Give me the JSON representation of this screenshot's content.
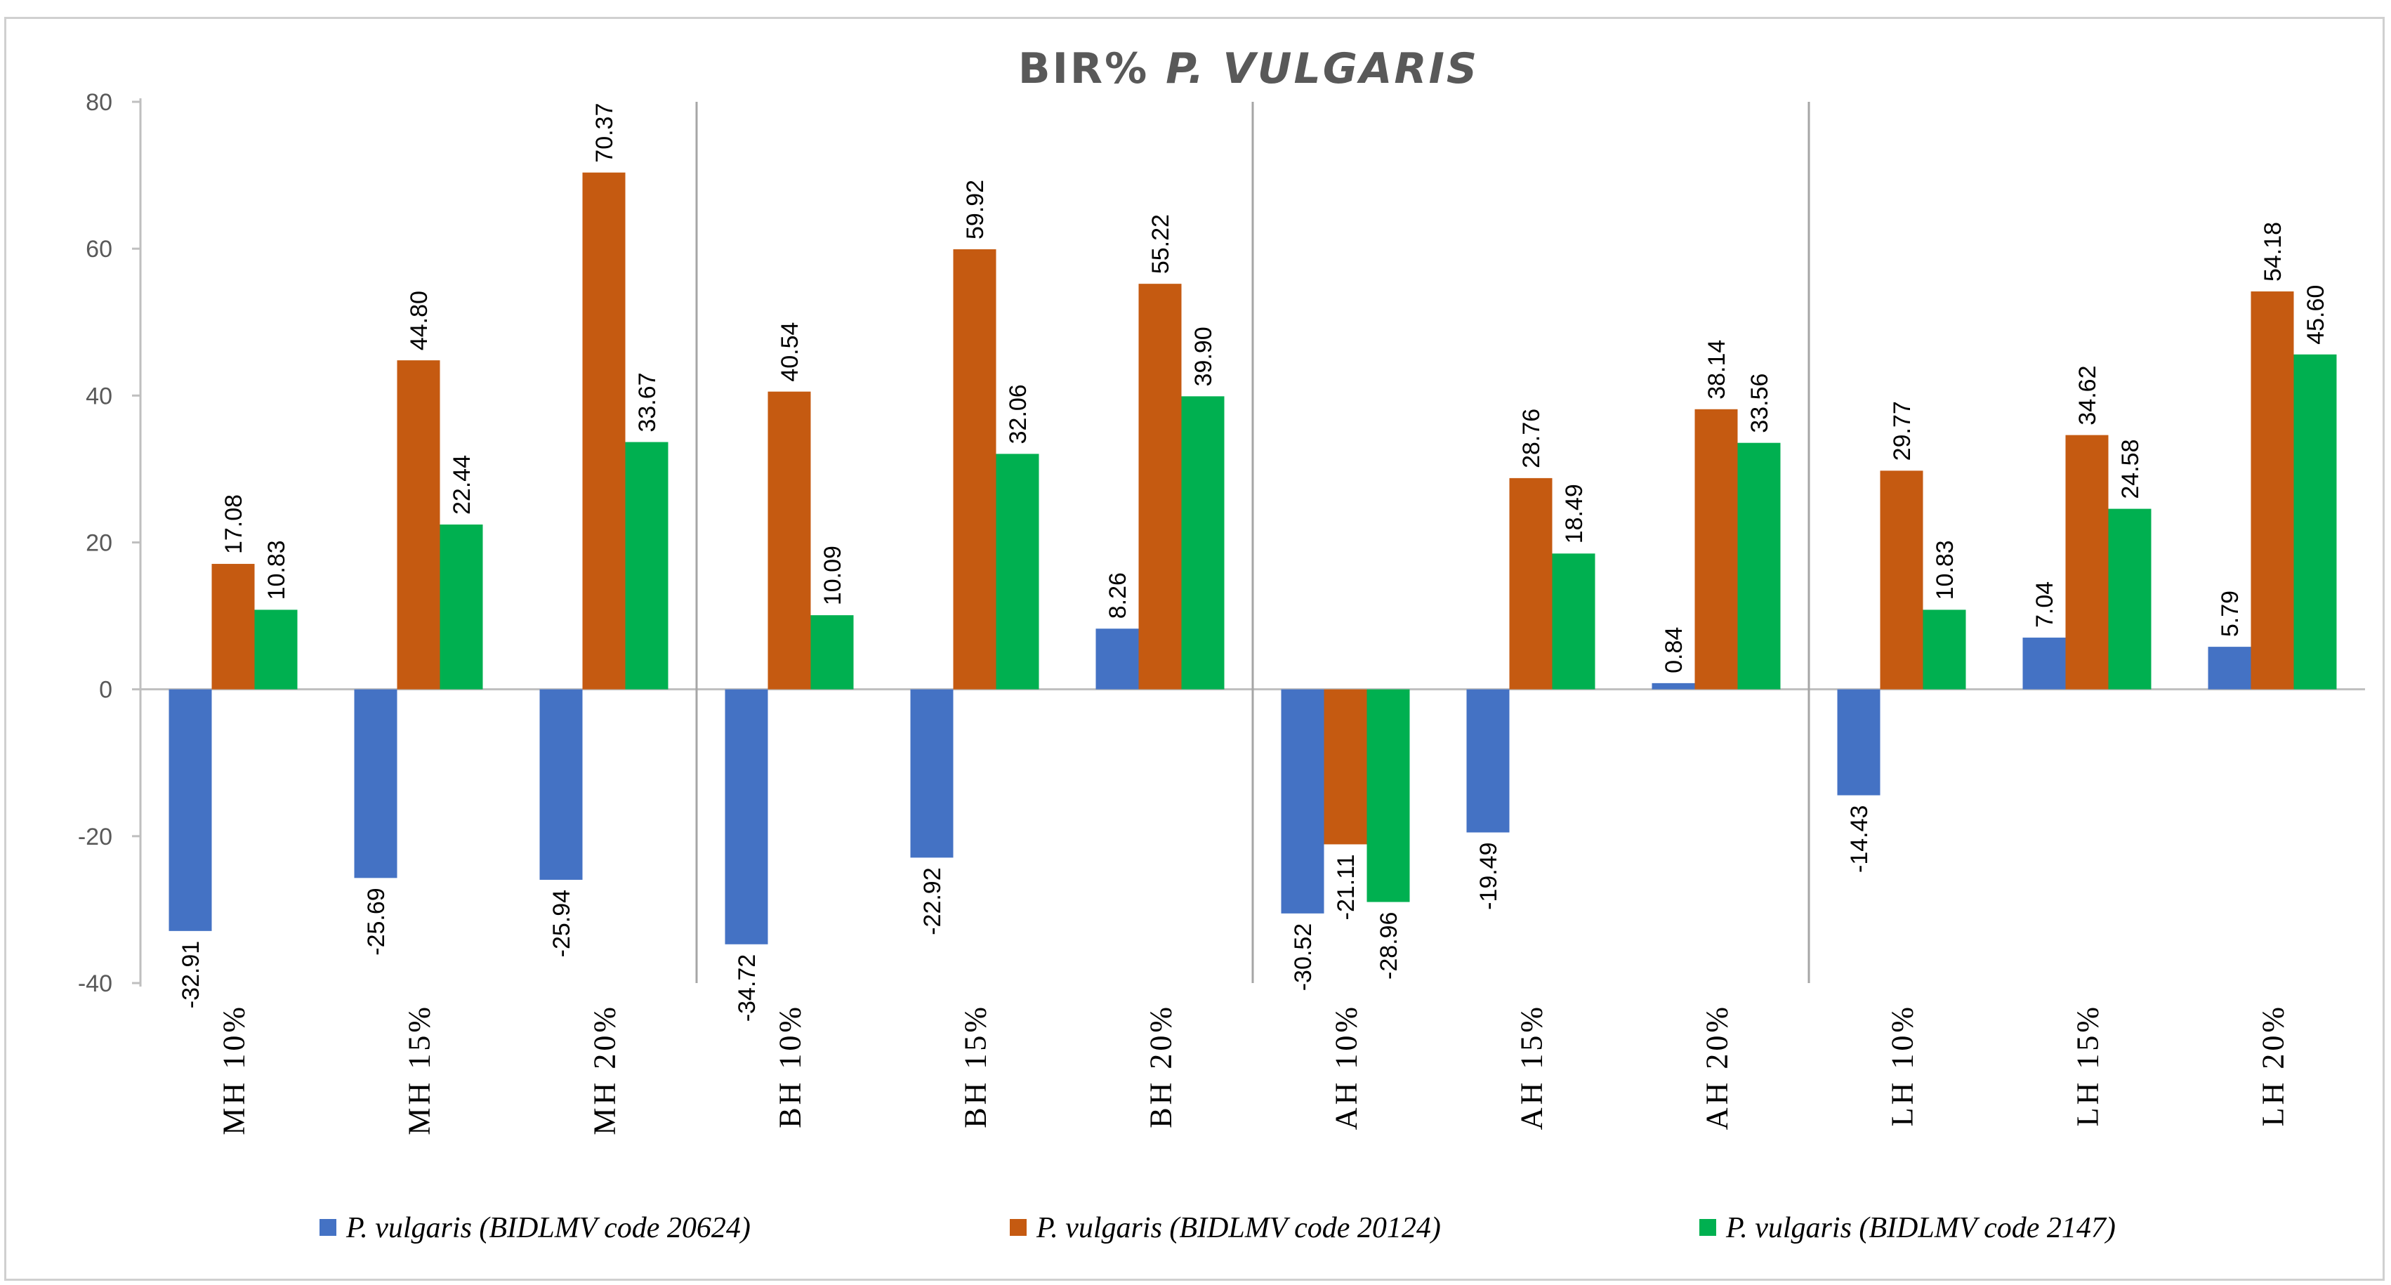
{
  "chart_data": {
    "type": "bar",
    "title_prefix": "BIR%",
    "title_italic": "P. VULGARIS",
    "categories": [
      "MH 10%",
      "MH 15%",
      "MH 20%",
      "BH 10%",
      "BH 15%",
      "BH 20%",
      "AH 10%",
      "AH 15%",
      "AH 20%",
      "LH 10%",
      "LH 15%",
      "LH 20%"
    ],
    "series": [
      {
        "name": "P. vulgaris (BIDLMV code 20624)",
        "color": "#4472c4",
        "values": [
          -32.91,
          -25.69,
          -25.94,
          -34.72,
          -22.92,
          8.26,
          -30.52,
          -19.49,
          0.84,
          -14.43,
          7.04,
          5.79
        ],
        "labels": [
          "-32.91",
          "-25.69",
          "-25.94",
          "-34.72",
          "-22.92",
          "8.26",
          "-30.52",
          "-19.49",
          "0.84",
          "-14.43",
          "7.04",
          "5.79"
        ]
      },
      {
        "name": "P. vulgaris (BIDLMV code 20124)",
        "color": "#c55a11",
        "values": [
          17.08,
          44.8,
          70.37,
          40.54,
          59.92,
          55.22,
          -21.11,
          28.76,
          38.14,
          29.77,
          34.62,
          54.18
        ],
        "labels": [
          "17.08",
          "44.80",
          "70.37",
          "40.54",
          "59.92",
          "55.22",
          "-21.11",
          "28.76",
          "38.14",
          "29.77",
          "34.62",
          "54.18"
        ]
      },
      {
        "name": "P. vulgaris (BIDLMV code 2147)",
        "color": "#00b050",
        "values": [
          10.83,
          22.44,
          33.67,
          10.09,
          32.06,
          39.9,
          -28.96,
          18.49,
          33.56,
          10.83,
          24.58,
          45.6
        ],
        "labels": [
          "10.83",
          "22.44",
          "33.67",
          "10.09",
          "32.06",
          "39.90",
          "-28.96",
          "18.49",
          "33.56",
          "10.83",
          "24.58",
          "45.60"
        ]
      }
    ],
    "yticks": [
      "80",
      "60",
      "40",
      "20",
      "0",
      "-20",
      "-40"
    ],
    "ytick_values": [
      80,
      60,
      40,
      20,
      0,
      -20,
      -40
    ],
    "ylim": [
      -40,
      80
    ],
    "group_separators_after": [
      2,
      5,
      8
    ],
    "legend_position": "bottom",
    "grid": false
  }
}
